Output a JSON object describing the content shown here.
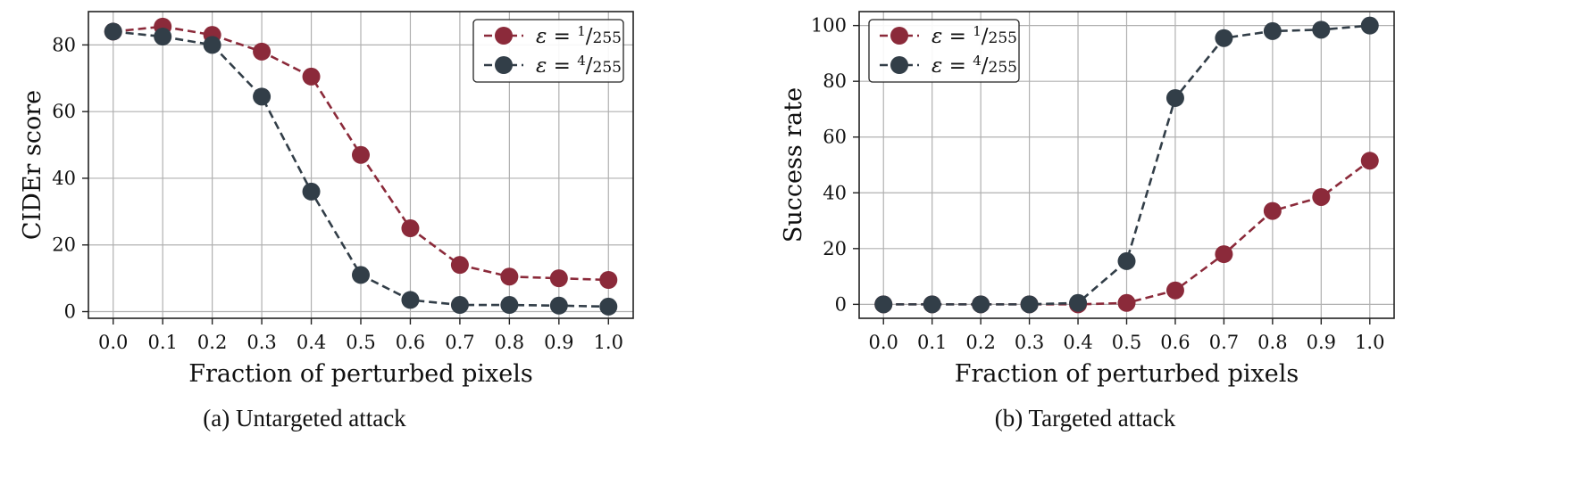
{
  "chart_data": [
    {
      "type": "line",
      "caption": "(a) Untargeted attack",
      "xlabel": "Fraction of perturbed pixels",
      "ylabel": "CIDEr score",
      "x": [
        0.0,
        0.1,
        0.2,
        0.3,
        0.4,
        0.5,
        0.6,
        0.7,
        0.8,
        0.9,
        1.0
      ],
      "xticks": [
        "0.0",
        "0.1",
        "0.2",
        "0.3",
        "0.4",
        "0.5",
        "0.6",
        "0.7",
        "0.8",
        "0.9",
        "1.0"
      ],
      "yticks": [
        "0",
        "20",
        "40",
        "60",
        "80"
      ],
      "xlim": [
        -0.05,
        1.05
      ],
      "ylim": [
        -2,
        90
      ],
      "grid": true,
      "legend_position": "top-right",
      "series": [
        {
          "name": "ε = 1/255",
          "eps_num": "1",
          "eps_den": "255",
          "color": "#8b2a3a",
          "values": [
            84,
            85.5,
            83,
            78,
            70.5,
            47,
            25,
            14,
            10.5,
            10,
            9.5
          ]
        },
        {
          "name": "ε = 4/255",
          "eps_num": "4",
          "eps_den": "255",
          "color": "#323e48",
          "values": [
            84,
            82.5,
            80,
            64.5,
            36,
            11,
            3.5,
            2,
            2,
            1.8,
            1.5
          ]
        }
      ]
    },
    {
      "type": "line",
      "caption": "(b) Targeted attack",
      "xlabel": "Fraction of perturbed pixels",
      "ylabel": "Success rate",
      "x": [
        0.0,
        0.1,
        0.2,
        0.3,
        0.4,
        0.5,
        0.6,
        0.7,
        0.8,
        0.9,
        1.0
      ],
      "xticks": [
        "0.0",
        "0.1",
        "0.2",
        "0.3",
        "0.4",
        "0.5",
        "0.6",
        "0.7",
        "0.8",
        "0.9",
        "1.0"
      ],
      "yticks": [
        "0",
        "20",
        "40",
        "60",
        "80",
        "100"
      ],
      "xlim": [
        -0.05,
        1.05
      ],
      "ylim": [
        -5,
        105
      ],
      "grid": true,
      "legend_position": "top-left",
      "series": [
        {
          "name": "ε = 1/255",
          "eps_num": "1",
          "eps_den": "255",
          "color": "#8b2a3a",
          "values": [
            0,
            0,
            0,
            0,
            0,
            0.5,
            5,
            18,
            33.5,
            38.5,
            51.5
          ]
        },
        {
          "name": "ε = 4/255",
          "eps_num": "4",
          "eps_den": "255",
          "color": "#323e48",
          "values": [
            0,
            0,
            0,
            0,
            0.5,
            15.5,
            74,
            95.5,
            98,
            98.5,
            100
          ]
        }
      ]
    }
  ]
}
